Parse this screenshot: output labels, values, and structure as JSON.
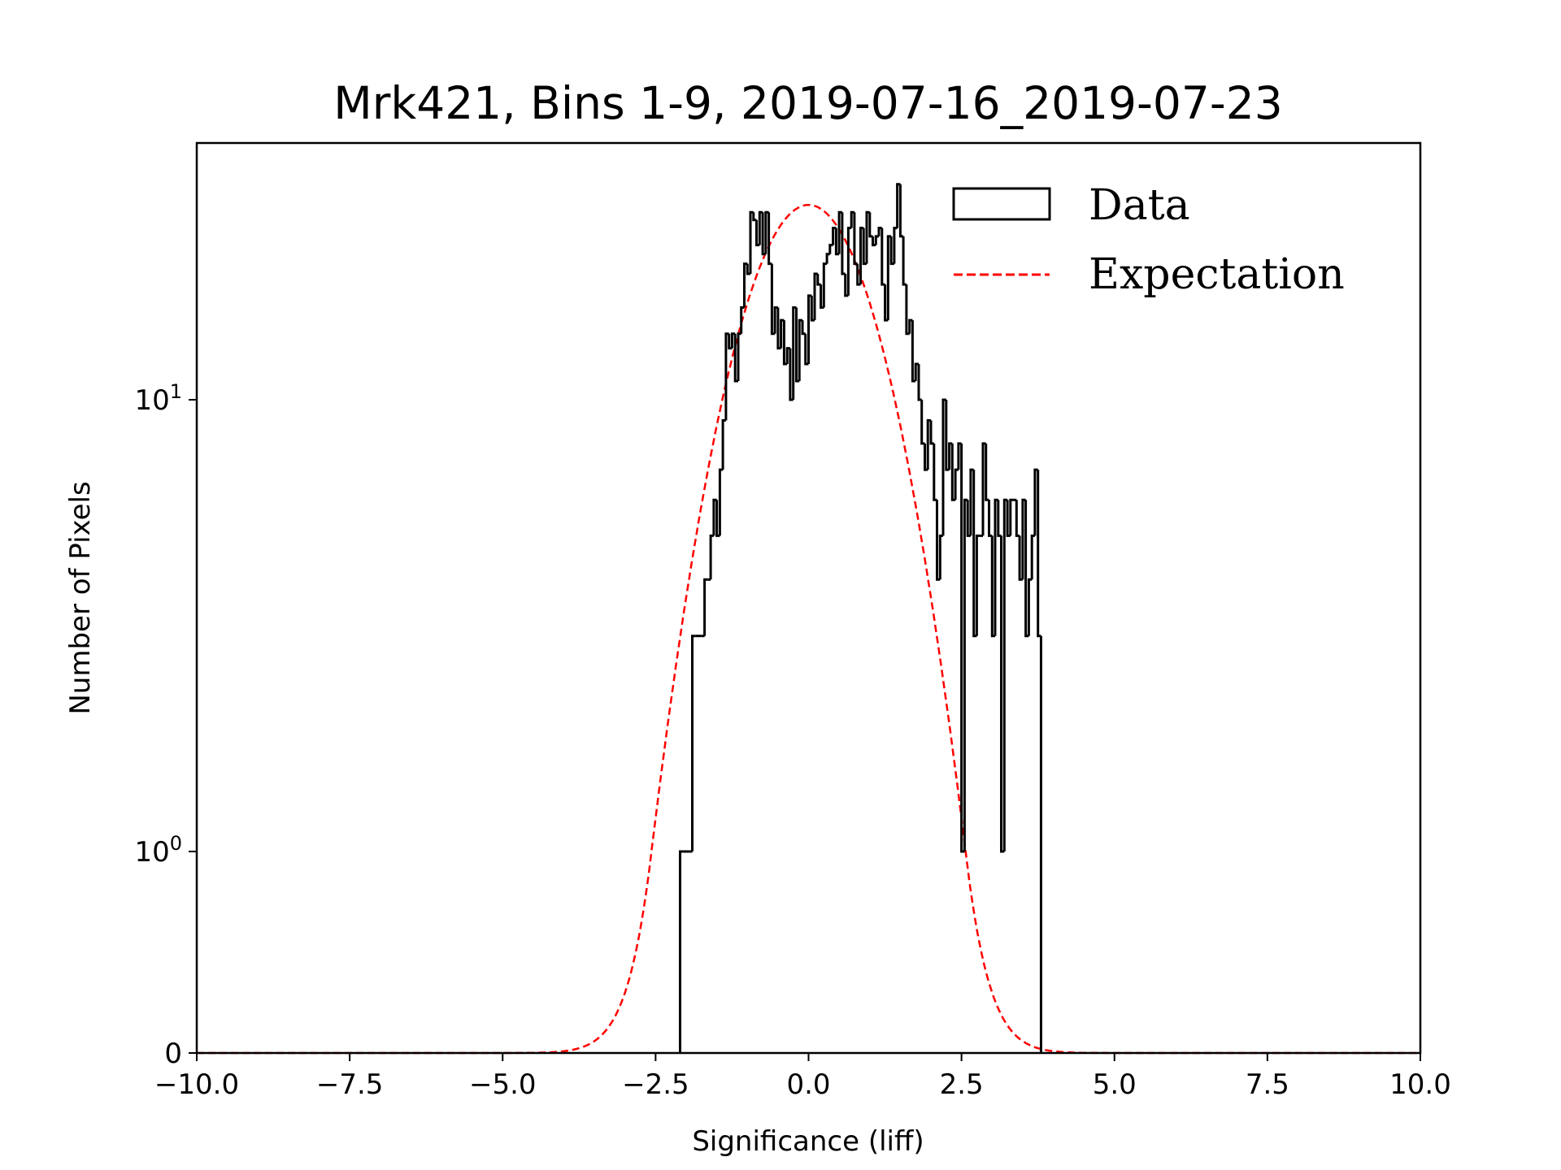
{
  "chart_data": {
    "type": "bar",
    "subtype": "step-histogram",
    "title": "Mrk421, Bins 1-9, 2019-07-16_2019-07-23",
    "xlabel": "Significance (liff)",
    "ylabel": "Number of Pixels",
    "xlim": [
      -10,
      10
    ],
    "yscale": "symlog",
    "ylim": [
      0,
      40
    ],
    "grid": false,
    "x_ticks": [
      -10,
      -7.5,
      -5,
      -2.5,
      0,
      2.5,
      5,
      7.5,
      10
    ],
    "x_tick_labels": [
      "−10.0",
      "−7.5",
      "−5.0",
      "−2.5",
      "0.0",
      "2.5",
      "5.0",
      "7.5",
      "10.0"
    ],
    "y_ticks": [
      0,
      1,
      10
    ],
    "y_tick_labels": [
      "0",
      "10^0",
      "10^1"
    ],
    "legend": {
      "placement": "top-right",
      "entries": [
        {
          "label": "Data",
          "style": "step-outline",
          "color": "#000000"
        },
        {
          "label": "Expectation",
          "style": "dashed-line",
          "color": "#ff0000"
        }
      ]
    },
    "series": [
      {
        "name": "Data",
        "color": "#000000",
        "bin_start": -2.1,
        "bin_width": 0.05,
        "values": [
          1,
          1,
          1,
          1,
          3,
          3,
          3,
          3,
          4,
          4,
          5,
          6,
          5,
          7,
          9,
          14,
          13,
          14,
          11,
          14,
          16,
          20,
          19,
          26,
          25,
          22,
          26,
          21,
          26,
          20,
          14,
          16,
          13,
          15,
          12,
          13,
          10,
          16,
          11,
          15,
          14,
          12,
          17,
          15,
          19,
          18,
          16,
          20,
          21,
          22,
          24,
          21,
          26,
          19,
          17,
          24,
          26,
          20,
          18,
          24,
          20,
          26,
          23,
          22,
          23,
          24,
          18,
          15,
          23,
          20,
          24,
          30,
          23,
          18,
          14,
          15,
          11,
          12,
          10,
          8,
          7,
          9,
          8,
          6,
          4,
          5,
          10,
          7,
          8,
          6,
          7,
          8,
          1,
          6,
          5,
          7,
          3,
          5,
          5,
          8,
          6,
          5,
          3,
          6,
          5,
          1,
          6,
          5,
          6,
          6,
          5,
          4,
          6,
          3,
          4,
          5,
          7,
          3
        ]
      },
      {
        "name": "Expectation",
        "color": "#ff0000",
        "line_style": "dashed",
        "model": "gaussian",
        "mean": 0.0,
        "sigma": 1.0,
        "peak": 27
      }
    ]
  }
}
